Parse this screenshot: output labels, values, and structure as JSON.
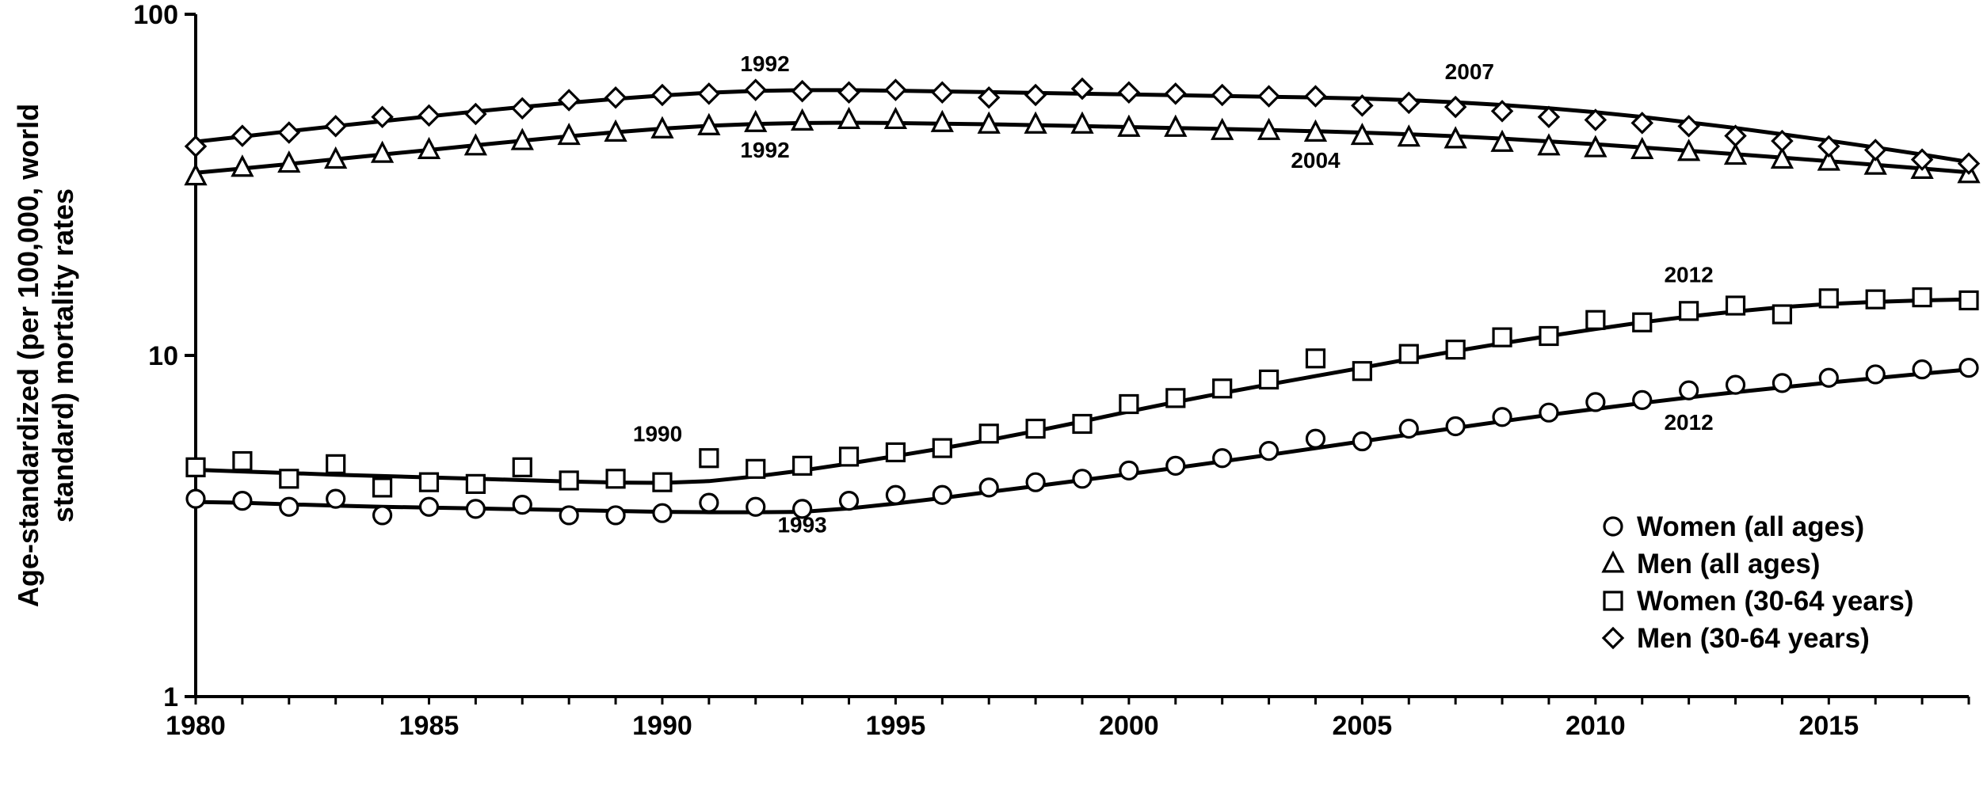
{
  "chart_data": {
    "type": "line",
    "ylabel": "Age-standardized (per 100,000, world standard) mortality rates",
    "ylabel_lines": [
      "Age-standardized (per 100,000, world",
      "standard) mortality rates"
    ],
    "y_scale": "log",
    "ylim": [
      1,
      100
    ],
    "y_ticks": [
      1,
      10,
      100
    ],
    "xlim": [
      1980,
      2018
    ],
    "x_ticks": [
      1980,
      1985,
      1990,
      1995,
      2000,
      2005,
      2010,
      2015
    ],
    "x": [
      1980,
      1981,
      1982,
      1983,
      1984,
      1985,
      1986,
      1987,
      1988,
      1989,
      1990,
      1991,
      1992,
      1993,
      1994,
      1995,
      1996,
      1997,
      1998,
      1999,
      2000,
      2001,
      2002,
      2003,
      2004,
      2005,
      2006,
      2007,
      2008,
      2009,
      2010,
      2011,
      2012,
      2013,
      2014,
      2015,
      2016,
      2017,
      2018
    ],
    "grid": false,
    "legend_position": "right",
    "series": [
      {
        "name": "Women (all ages)",
        "marker": "circle",
        "values": [
          3.8,
          3.75,
          3.6,
          3.8,
          3.4,
          3.6,
          3.55,
          3.65,
          3.4,
          3.4,
          3.45,
          3.7,
          3.6,
          3.55,
          3.75,
          3.9,
          3.9,
          4.1,
          4.25,
          4.35,
          4.6,
          4.75,
          5.0,
          5.25,
          5.7,
          5.6,
          6.1,
          6.2,
          6.6,
          6.8,
          7.3,
          7.4,
          7.9,
          8.2,
          8.3,
          8.6,
          8.8,
          9.1,
          9.2
        ],
        "trend": [
          3.72,
          3.7,
          3.66,
          3.63,
          3.6,
          3.58,
          3.56,
          3.54,
          3.52,
          3.5,
          3.48,
          3.47,
          3.47,
          3.48,
          3.56,
          3.68,
          3.82,
          3.98,
          4.14,
          4.31,
          4.49,
          4.68,
          4.89,
          5.11,
          5.35,
          5.6,
          5.86,
          6.13,
          6.41,
          6.69,
          6.97,
          7.25,
          7.53,
          7.8,
          8.06,
          8.32,
          8.58,
          8.84,
          9.1
        ]
      },
      {
        "name": "Men (all ages)",
        "marker": "triangle",
        "values": [
          33.5,
          35.5,
          36.5,
          37.5,
          39,
          40,
          41,
          42.5,
          44,
          45,
          46,
          47,
          48,
          48.5,
          49,
          49,
          48,
          47.5,
          47.5,
          47.5,
          46.5,
          46.5,
          45.5,
          45.5,
          45,
          44,
          43.5,
          43,
          42,
          41,
          40.5,
          40,
          39.5,
          38.5,
          37.5,
          37,
          36,
          35,
          34
        ],
        "trend": [
          34.3,
          35.3,
          36.4,
          37.6,
          38.8,
          40.0,
          41.3,
          42.6,
          43.9,
          45.1,
          46.2,
          47.1,
          47.7,
          48.0,
          48.1,
          48.0,
          47.8,
          47.6,
          47.3,
          47.0,
          46.7,
          46.4,
          46.1,
          45.8,
          45.4,
          45.0,
          44.5,
          43.9,
          43.2,
          42.4,
          41.6,
          40.7,
          39.8,
          38.9,
          38.0,
          37.1,
          36.2,
          35.3,
          34.4
        ]
      },
      {
        "name": "Women (30-64 years)",
        "marker": "square",
        "values": [
          4.7,
          4.9,
          4.35,
          4.8,
          4.1,
          4.25,
          4.2,
          4.7,
          4.3,
          4.35,
          4.25,
          5.0,
          4.65,
          4.75,
          5.05,
          5.2,
          5.35,
          5.9,
          6.1,
          6.3,
          7.2,
          7.5,
          8.0,
          8.5,
          9.8,
          9.0,
          10.1,
          10.4,
          11.3,
          11.4,
          12.7,
          12.5,
          13.5,
          14.0,
          13.2,
          14.7,
          14.6,
          14.8,
          14.5
        ],
        "trend": [
          4.62,
          4.57,
          4.52,
          4.47,
          4.43,
          4.39,
          4.35,
          4.31,
          4.27,
          4.24,
          4.23,
          4.28,
          4.42,
          4.6,
          4.82,
          5.07,
          5.34,
          5.65,
          6.0,
          6.4,
          6.85,
          7.3,
          7.76,
          8.22,
          8.7,
          9.2,
          9.75,
          10.3,
          10.85,
          11.4,
          11.95,
          12.5,
          13.0,
          13.45,
          13.85,
          14.15,
          14.35,
          14.5,
          14.6
        ]
      },
      {
        "name": "Men (30-64 years)",
        "marker": "diamond",
        "values": [
          41,
          44,
          45,
          47,
          50,
          50.5,
          51,
          53,
          56,
          57,
          58,
          58.5,
          60,
          59.5,
          59,
          60,
          59,
          57,
          58,
          60.5,
          59,
          58.5,
          58,
          57.5,
          57.5,
          54,
          55,
          53.5,
          52,
          50,
          49,
          48,
          47,
          44,
          42.5,
          41,
          40,
          37.5,
          36.5
        ],
        "trend": [
          42.3,
          43.8,
          45.4,
          47.0,
          48.6,
          50.2,
          51.9,
          53.5,
          55.0,
          56.5,
          57.8,
          58.9,
          59.6,
          59.9,
          59.9,
          59.7,
          59.4,
          59.1,
          58.8,
          58.5,
          58.2,
          57.9,
          57.6,
          57.3,
          57.0,
          56.6,
          56.0,
          55.2,
          54.2,
          53.0,
          51.6,
          50.0,
          48.2,
          46.4,
          44.5,
          42.6,
          40.7,
          38.8,
          36.9
        ]
      }
    ],
    "annotations": [
      {
        "text": "1992",
        "x": 1992.2,
        "y": 68.0
      },
      {
        "text": "2007",
        "x": 2007.3,
        "y": 64.5
      },
      {
        "text": "1992",
        "x": 1992.2,
        "y": 38.0
      },
      {
        "text": "2004",
        "x": 2004.0,
        "y": 35.5
      },
      {
        "text": "2012",
        "x": 2012.0,
        "y": 16.4
      },
      {
        "text": "1990",
        "x": 1989.9,
        "y": 5.6
      },
      {
        "text": "2012",
        "x": 2012.0,
        "y": 6.05
      },
      {
        "text": "1993",
        "x": 1993.0,
        "y": 3.03
      }
    ]
  }
}
